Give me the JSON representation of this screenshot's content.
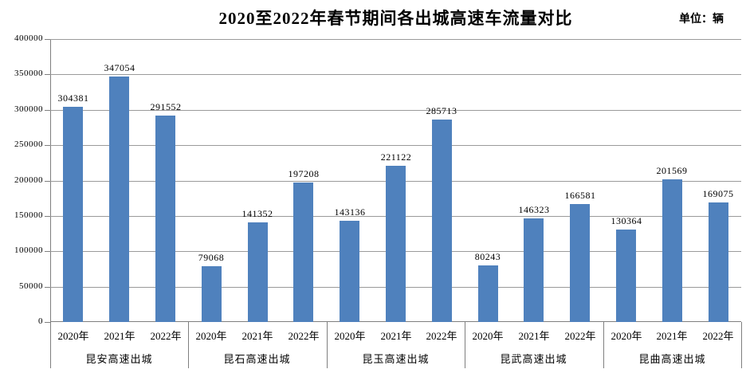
{
  "chart_data": {
    "type": "bar",
    "title": "2020至2022年春节期间各出城高速车流量对比",
    "unit_label": "单位：辆",
    "bar_color": "#4F81BD",
    "gridline_color": "#9a9a9a",
    "axis_color": "#7f7f7f",
    "grid": true,
    "legend_position": "none",
    "ylim": [
      0,
      400000
    ],
    "y_tick_step": 50000,
    "y_tick_labels": [
      "0",
      "50000",
      "100000",
      "150000",
      "200000",
      "250000",
      "300000",
      "350000",
      "400000"
    ],
    "series_labels": [
      "2020年",
      "2021年",
      "2022年"
    ],
    "categories": [
      "昆安高速出城",
      "昆石高速出城",
      "昆玉高速出城",
      "昆武高速出城",
      "昆曲高速出城"
    ],
    "groups": [
      {
        "name": "昆安高速出城",
        "values": [
          304381,
          347054,
          291552
        ]
      },
      {
        "name": "昆石高速出城",
        "values": [
          79068,
          141352,
          197208
        ]
      },
      {
        "name": "昆玉高速出城",
        "values": [
          143136,
          221122,
          285713
        ]
      },
      {
        "name": "昆武高速出城",
        "values": [
          80243,
          146323,
          166581
        ]
      },
      {
        "name": "昆曲高速出城",
        "values": [
          130364,
          201569,
          169075
        ]
      }
    ]
  }
}
